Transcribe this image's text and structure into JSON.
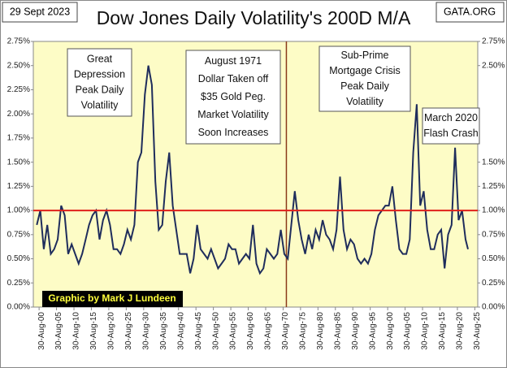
{
  "chart_data": {
    "type": "line",
    "title": "Dow Jones Daily Volatility's 200D M/A",
    "date_label": "29 Sept 2023",
    "source": "GATA.ORG",
    "credit": "Graphic by Mark J Lundeen",
    "annotations": [
      {
        "lines": [
          "Great",
          "Depression",
          "Peak Daily",
          "Volatility"
        ]
      },
      {
        "lines": [
          "August 1971",
          "Dollar Taken off",
          "$35 Gold Peg.",
          "Market Volatility",
          "Soon Increases"
        ]
      },
      {
        "lines": [
          "Sub-Prime",
          "Mortgage Crisis",
          "Peak Daily",
          "Volatility"
        ]
      },
      {
        "lines": [
          "March 2020",
          "Flash Crash"
        ]
      }
    ],
    "reference_lines": {
      "x": 1971.6,
      "y": 1.0
    },
    "x": [
      1900,
      1901,
      1902,
      1903,
      1904,
      1905,
      1906,
      1907,
      1908,
      1909,
      1910,
      1911,
      1912,
      1913,
      1914,
      1915,
      1916,
      1917,
      1918,
      1919,
      1920,
      1921,
      1922,
      1923,
      1924,
      1925,
      1926,
      1927,
      1928,
      1929,
      1930,
      1931,
      1932,
      1933,
      1934,
      1935,
      1936,
      1937,
      1938,
      1939,
      1940,
      1941,
      1942,
      1943,
      1944,
      1945,
      1946,
      1947,
      1948,
      1949,
      1950,
      1951,
      1952,
      1953,
      1954,
      1955,
      1956,
      1957,
      1958,
      1959,
      1960,
      1961,
      1962,
      1963,
      1964,
      1965,
      1966,
      1967,
      1968,
      1969,
      1970,
      1971,
      1972,
      1973,
      1974,
      1975,
      1976,
      1977,
      1978,
      1979,
      1980,
      1981,
      1982,
      1983,
      1984,
      1985,
      1986,
      1987,
      1988,
      1989,
      1990,
      1991,
      1992,
      1993,
      1994,
      1995,
      1996,
      1997,
      1998,
      1999,
      2000,
      2001,
      2002,
      2003,
      2004,
      2005,
      2006,
      2007,
      2008,
      2009,
      2010,
      2011,
      2012,
      2013,
      2014,
      2015,
      2016,
      2017,
      2018,
      2019,
      2020,
      2021,
      2022,
      2023,
      2023.7
    ],
    "series": [
      {
        "name": "Volatility 200D M/A",
        "color": "#1f2d5c",
        "values": [
          0.85,
          1.0,
          0.6,
          0.85,
          0.55,
          0.6,
          0.7,
          1.05,
          0.95,
          0.55,
          0.65,
          0.55,
          0.45,
          0.55,
          0.7,
          0.85,
          0.95,
          1.0,
          0.7,
          0.9,
          1.0,
          0.85,
          0.6,
          0.6,
          0.55,
          0.65,
          0.8,
          0.7,
          0.85,
          1.5,
          1.6,
          2.2,
          2.5,
          2.3,
          1.3,
          0.8,
          0.85,
          1.3,
          1.6,
          1.05,
          0.8,
          0.55,
          0.55,
          0.55,
          0.35,
          0.5,
          0.85,
          0.6,
          0.55,
          0.5,
          0.6,
          0.5,
          0.4,
          0.45,
          0.5,
          0.65,
          0.6,
          0.6,
          0.45,
          0.5,
          0.55,
          0.5,
          0.85,
          0.45,
          0.35,
          0.4,
          0.6,
          0.55,
          0.5,
          0.55,
          0.8,
          0.55,
          0.5,
          0.85,
          1.2,
          0.9,
          0.7,
          0.55,
          0.75,
          0.6,
          0.8,
          0.7,
          0.9,
          0.75,
          0.7,
          0.6,
          0.8,
          1.35,
          0.8,
          0.6,
          0.7,
          0.65,
          0.5,
          0.45,
          0.5,
          0.45,
          0.55,
          0.8,
          0.95,
          1.0,
          1.05,
          1.05,
          1.25,
          0.9,
          0.6,
          0.55,
          0.55,
          0.7,
          1.6,
          2.1,
          1.05,
          1.2,
          0.8,
          0.6,
          0.6,
          0.75,
          0.8,
          0.4,
          0.75,
          0.85,
          1.65,
          0.9,
          1.0,
          0.7,
          0.6
        ]
      }
    ],
    "xlim": [
      1899,
      2026.5
    ],
    "xticks": [
      {
        "value": 1900.66,
        "label": "30-Aug-00"
      },
      {
        "value": 1905.66,
        "label": "30-Aug-05"
      },
      {
        "value": 1910.66,
        "label": "30-Aug-10"
      },
      {
        "value": 1915.66,
        "label": "30-Aug-15"
      },
      {
        "value": 1920.66,
        "label": "30-Aug-20"
      },
      {
        "value": 1925.66,
        "label": "30-Aug-25"
      },
      {
        "value": 1930.66,
        "label": "30-Aug-30"
      },
      {
        "value": 1935.66,
        "label": "30-Aug-35"
      },
      {
        "value": 1940.66,
        "label": "30-Aug-40"
      },
      {
        "value": 1945.66,
        "label": "30-Aug-45"
      },
      {
        "value": 1950.66,
        "label": "30-Aug-50"
      },
      {
        "value": 1955.66,
        "label": "30-Aug-55"
      },
      {
        "value": 1960.66,
        "label": "30-Aug-60"
      },
      {
        "value": 1965.66,
        "label": "30-Aug-65"
      },
      {
        "value": 1970.66,
        "label": "30-Aug-70"
      },
      {
        "value": 1975.66,
        "label": "30-Aug-75"
      },
      {
        "value": 1980.66,
        "label": "30-Aug-80"
      },
      {
        "value": 1985.66,
        "label": "30-Aug-85"
      },
      {
        "value": 1990.66,
        "label": "30-Aug-90"
      },
      {
        "value": 1995.66,
        "label": "30-Aug-95"
      },
      {
        "value": 2000.66,
        "label": "30-Aug-00"
      },
      {
        "value": 2005.66,
        "label": "30-Aug-05"
      },
      {
        "value": 2010.66,
        "label": "30-Aug-10"
      },
      {
        "value": 2015.66,
        "label": "30-Aug-15"
      },
      {
        "value": 2020.66,
        "label": "30-Aug-20"
      },
      {
        "value": 2025.66,
        "label": "30-Aug-25"
      }
    ],
    "ylim": [
      0,
      2.75
    ],
    "yticks": [
      {
        "value": 0,
        "label": "0.00%"
      },
      {
        "value": 0.25,
        "label": "0.25%"
      },
      {
        "value": 0.5,
        "label": "0.50%"
      },
      {
        "value": 0.75,
        "label": "0.75%"
      },
      {
        "value": 1,
        "label": "1.00%"
      },
      {
        "value": 1.25,
        "label": "1.25%"
      },
      {
        "value": 1.5,
        "label": "1.50%"
      },
      {
        "value": 1.75,
        "label": "1.75%"
      },
      {
        "value": 2,
        "label": "2.00%"
      },
      {
        "value": 2.25,
        "label": "2.25%"
      },
      {
        "value": 2.5,
        "label": "2.50%"
      },
      {
        "value": 2.75,
        "label": "2.75%"
      }
    ],
    "y2lim": [
      0,
      2.75
    ],
    "y2ticks": [
      {
        "value": 0,
        "label": "0.00%"
      },
      {
        "value": 0.25,
        "label": "0.25%"
      },
      {
        "value": 0.5,
        "label": "0.50%"
      },
      {
        "value": 0.75,
        "label": "0.75%"
      },
      {
        "value": 1,
        "label": "1.00%"
      },
      {
        "value": 1.25,
        "label": "1.25%"
      },
      {
        "value": 1.5,
        "label": "1.50%"
      },
      {
        "value": 2.5,
        "label": "2.50%"
      },
      {
        "value": 2.75,
        "label": "2.75%"
      }
    ]
  }
}
